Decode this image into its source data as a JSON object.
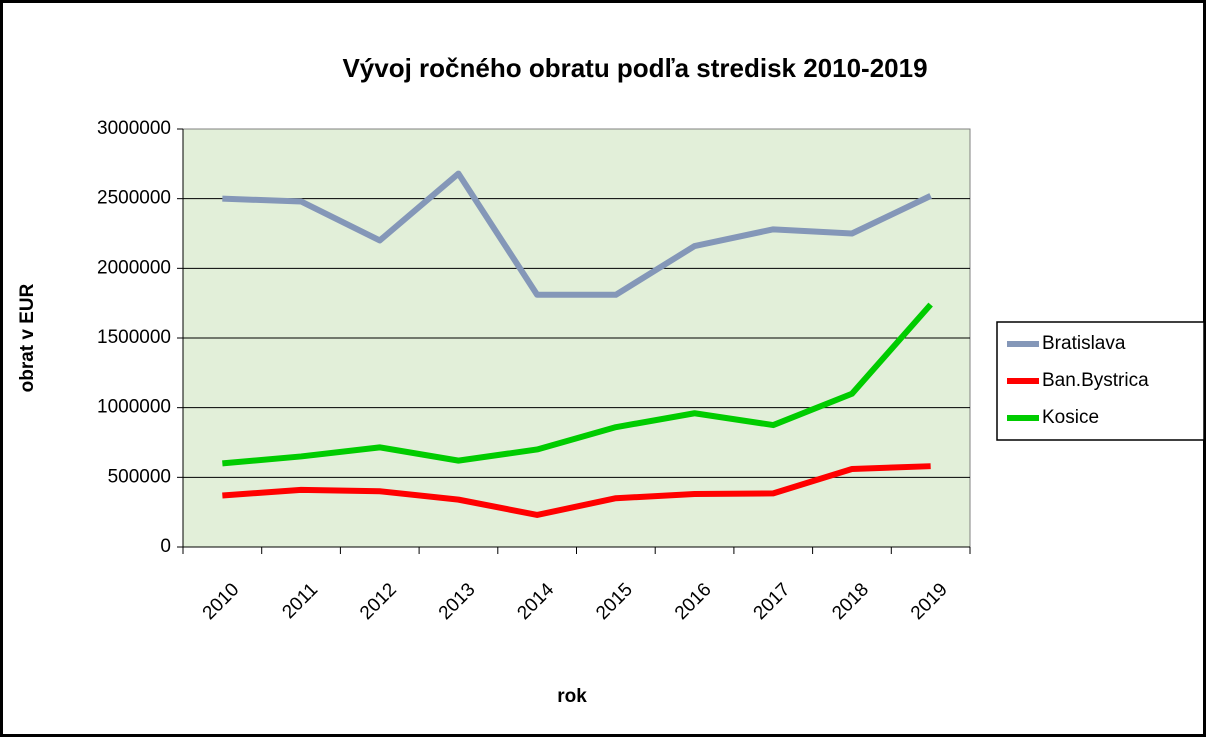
{
  "chart_data": {
    "type": "line",
    "title": "Vývoj ročného obratu podľa stredisk 2010-2019",
    "x_label": "rok",
    "y_label": "obrat v EUR",
    "categories": [
      "2010",
      "2011",
      "2012",
      "2013",
      "2014",
      "2015",
      "2016",
      "2017",
      "2018",
      "2019"
    ],
    "series": [
      {
        "name": "Bratislava",
        "color": "#8497b8",
        "values": [
          2500000,
          2480000,
          2200000,
          2680000,
          1810000,
          1810000,
          2160000,
          2280000,
          2250000,
          2520000
        ]
      },
      {
        "name": "Ban.Bystrica",
        "color": "#ff0000",
        "values": [
          370000,
          410000,
          400000,
          340000,
          230000,
          350000,
          380000,
          385000,
          560000,
          580000
        ]
      },
      {
        "name": "Kosice",
        "color": "#00cc00",
        "values": [
          600000,
          650000,
          715000,
          620000,
          700000,
          860000,
          960000,
          875000,
          1100000,
          1740000
        ]
      }
    ],
    "ylim": [
      0,
      3000000
    ],
    "yticks": [
      0,
      500000,
      1000000,
      1500000,
      2000000,
      2500000,
      3000000
    ],
    "grid": true,
    "legend": "right",
    "plot_background": "#e2efd9"
  }
}
